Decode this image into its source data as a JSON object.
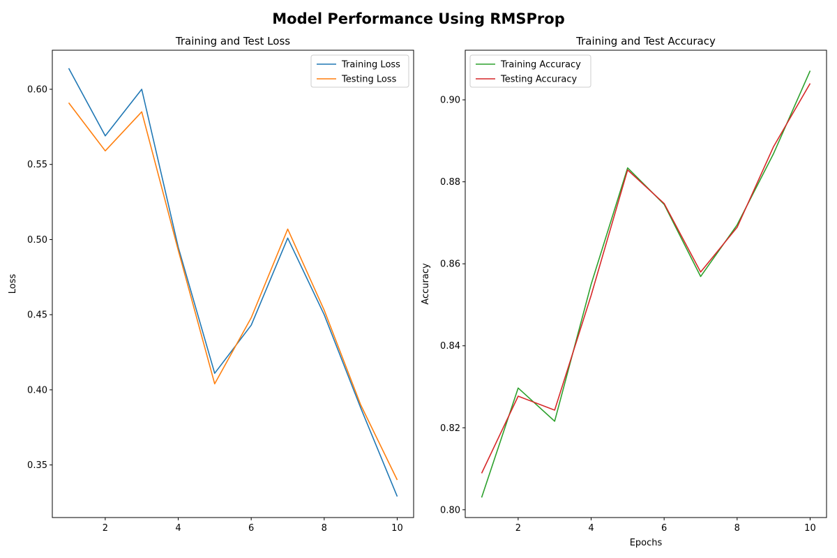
{
  "figure": {
    "title": "Model Performance Using RMSProp"
  },
  "chart_data": [
    {
      "type": "line",
      "title": "Training and Test Loss",
      "xlabel": "",
      "ylabel": "Loss",
      "x": [
        1,
        2,
        3,
        4,
        5,
        6,
        7,
        8,
        9,
        10
      ],
      "xlim": [
        0.55,
        10.45
      ],
      "ylim": [
        0.315,
        0.626
      ],
      "xticks": [
        2,
        4,
        6,
        8,
        10
      ],
      "xtick_labels": [
        "2",
        "4",
        "6",
        "8",
        "10"
      ],
      "yticks": [
        0.35,
        0.4,
        0.45,
        0.5,
        0.55,
        0.6
      ],
      "ytick_labels": [
        "0.35",
        "0.40",
        "0.45",
        "0.50",
        "0.55",
        "0.60"
      ],
      "grid": false,
      "legend_position": "upper right",
      "series": [
        {
          "name": "Training Loss",
          "color": "#1f77b4",
          "values": [
            0.614,
            0.569,
            0.6,
            0.495,
            0.411,
            0.443,
            0.501,
            0.45,
            0.388,
            0.329
          ]
        },
        {
          "name": "Testing Loss",
          "color": "#ff7f0e",
          "values": [
            0.591,
            0.559,
            0.585,
            0.493,
            0.404,
            0.448,
            0.507,
            0.453,
            0.39,
            0.34
          ]
        }
      ]
    },
    {
      "type": "line",
      "title": "Training and Test Accuracy",
      "xlabel": "Epochs",
      "ylabel": "Accuracy",
      "x": [
        1,
        2,
        3,
        4,
        5,
        6,
        7,
        8,
        9,
        10
      ],
      "xlim": [
        0.55,
        10.45
      ],
      "ylim": [
        0.7981,
        0.9121
      ],
      "xticks": [
        2,
        4,
        6,
        8,
        10
      ],
      "xtick_labels": [
        "2",
        "4",
        "6",
        "8",
        "10"
      ],
      "yticks": [
        0.8,
        0.82,
        0.84,
        0.86,
        0.88,
        0.9
      ],
      "ytick_labels": [
        "0.80",
        "0.82",
        "0.84",
        "0.86",
        "0.88",
        "0.90"
      ],
      "grid": false,
      "legend_position": "upper left",
      "series": [
        {
          "name": "Training Accuracy",
          "color": "#2ca02c",
          "values": [
            0.803,
            0.8297,
            0.8216,
            0.855,
            0.8834,
            0.8745,
            0.8569,
            0.8695,
            0.8869,
            0.9071
          ]
        },
        {
          "name": "Testing Accuracy",
          "color": "#d62728",
          "values": [
            0.8089,
            0.8277,
            0.8243,
            0.8523,
            0.8829,
            0.8747,
            0.858,
            0.8689,
            0.8886,
            0.904
          ]
        }
      ]
    }
  ]
}
